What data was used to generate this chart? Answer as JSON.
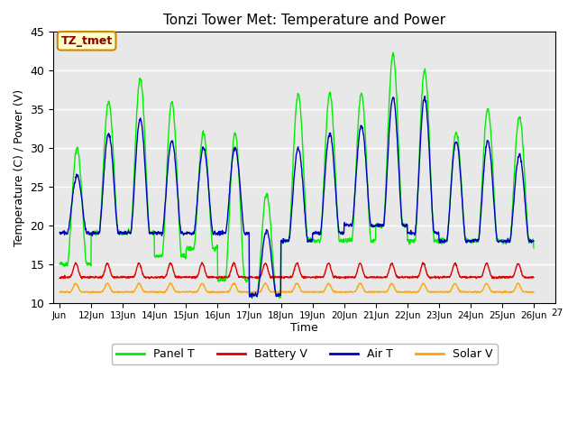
{
  "title": "Tonzi Tower Met: Temperature and Power",
  "xlabel": "Time",
  "ylabel": "Temperature (C) / Power (V)",
  "ylim": [
    10,
    45
  ],
  "annotation": "TZ_tmet",
  "annotation_color": "#8B0000",
  "annotation_bg": "#FFFFCC",
  "annotation_edge": "#CC8800",
  "tick_labels": [
    "Jun",
    "12Jun",
    "13Jun",
    "14Jun",
    "15Jun",
    "16Jun",
    "17Jun",
    "18Jun",
    "19Jun",
    "20Jun",
    "21Jun",
    "22Jun",
    "23Jun",
    "24Jun",
    "25Jun",
    "26Jun"
  ],
  "background_color": "#E8E8E8",
  "panel_color": "#00EE00",
  "battery_color": "#DD0000",
  "air_color": "#0000BB",
  "solar_color": "#FFA500",
  "grid_color": "#FFFFFF",
  "yticks": [
    10,
    15,
    20,
    25,
    30,
    35,
    40,
    45
  ],
  "legend_labels": [
    "Panel T",
    "Battery V",
    "Air T",
    "Solar V"
  ],
  "panel_peaks": [
    30,
    36,
    39,
    36,
    32,
    32,
    24,
    37,
    37,
    37,
    42,
    40,
    32,
    35,
    34,
    33
  ],
  "air_peaks": [
    27,
    33,
    35,
    32,
    31,
    31,
    20,
    31,
    33,
    34,
    38,
    38,
    32,
    32,
    30,
    30
  ],
  "panel_troughs": [
    15,
    19,
    19,
    16,
    17,
    13,
    11,
    18,
    18,
    18,
    20,
    18,
    18,
    18,
    18,
    17
  ],
  "air_troughs": [
    19,
    19,
    19,
    19,
    19,
    19,
    11,
    18,
    19,
    20,
    20,
    19,
    18,
    18,
    18,
    18
  ]
}
